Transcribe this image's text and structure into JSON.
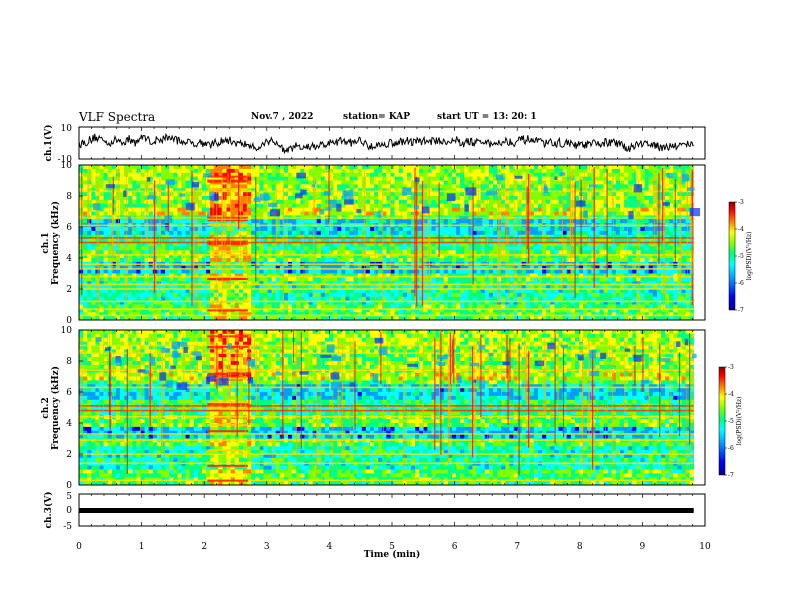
{
  "header": {
    "title": "VLF Spectra",
    "date": "Nov.7 , 2022",
    "station": "station= KAP",
    "start": "start UT = 13: 20: 1"
  },
  "chart_data": [
    {
      "type": "line",
      "ylabel": "ch.1(V)",
      "xlim": [
        0,
        10
      ],
      "ylim": [
        -10,
        10
      ],
      "yticks": [
        "10",
        "-10"
      ],
      "note": "noisy waveform varying between about -5 and 5 V"
    },
    {
      "type": "heatmap",
      "ylabel": "ch.1\nFrequency (kHz)",
      "xlim": [
        0,
        10
      ],
      "ylim": [
        0,
        10
      ],
      "yticks": [
        "0",
        "2",
        "4",
        "6",
        "8",
        "10"
      ],
      "colorbar": {
        "label": "log(PSD)(V²/Hz)",
        "range": [
          -7,
          -3
        ],
        "ticks": [
          "-3",
          "-4",
          "-5",
          "-6",
          "-7"
        ]
      },
      "burst_interval_min": [
        2.05,
        2.7
      ],
      "band_lines_khz": [
        0.3,
        0.7,
        1.2,
        2.0,
        2.3,
        2.8,
        3.3,
        3.6,
        4.2,
        5.0,
        5.3,
        6.1,
        6.6,
        8.3
      ]
    },
    {
      "type": "heatmap",
      "ylabel": "ch.2\nFrequency (kHz)",
      "xlim": [
        0,
        10
      ],
      "ylim": [
        0,
        10
      ],
      "yticks": [
        "0",
        "2",
        "4",
        "6",
        "8",
        "10"
      ],
      "colorbar": {
        "label": "log(PSD)(V²/Hz)",
        "range": [
          -7,
          -3
        ],
        "ticks": [
          "-3",
          "-4",
          "-5",
          "-6",
          "-7"
        ]
      },
      "burst_interval_min": [
        2.05,
        2.7
      ],
      "band_lines_khz": [
        0.3,
        1.4,
        2.0,
        2.9,
        3.3,
        4.4,
        4.8,
        5.1,
        6.3,
        7.4,
        8.5,
        9.0
      ]
    },
    {
      "type": "line",
      "ylabel": "ch.3(V)",
      "xlim": [
        0,
        10
      ],
      "ylim": [
        -5,
        5
      ],
      "yticks": [
        "5",
        "0",
        "-5"
      ],
      "note": "dense signal band around -1 V"
    }
  ],
  "xaxis": {
    "label": "Time (min)",
    "ticks": [
      "0",
      "1",
      "2",
      "3",
      "4",
      "5",
      "6",
      "7",
      "8",
      "9",
      "10"
    ],
    "data_end_min": 9.82
  },
  "colors": {
    "colormap": [
      "#00008c",
      "#0000ff",
      "#00a0ff",
      "#00ffff",
      "#00ff80",
      "#80ff00",
      "#ffff00",
      "#ff8000",
      "#ff0000",
      "#8c0000"
    ]
  }
}
